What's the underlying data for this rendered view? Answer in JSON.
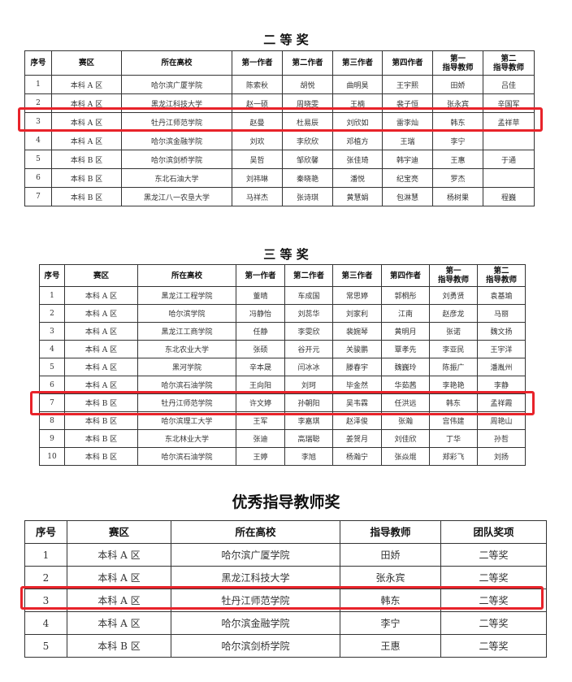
{
  "second_prize": {
    "title": "二 等 奖",
    "headers": [
      "序号",
      "赛区",
      "所在高校",
      "第一作者",
      "第二作者",
      "第三作者",
      "第四作者",
      "第一\n指导教师",
      "第二\n指导教师"
    ],
    "rows": [
      [
        "1",
        "本科 A 区",
        "哈尔滨广厦学院",
        "陈索秋",
        "胡悦",
        "曲明昊",
        "王宇熙",
        "田娇",
        "吕佳"
      ],
      [
        "2",
        "本科 A 区",
        "黑龙江科技大学",
        "赵一硕",
        "周晓雯",
        "王楠",
        "裴子恒",
        "张永宾",
        "辛国军"
      ],
      [
        "3",
        "本科 A 区",
        "牡丹江师范学院",
        "赵曼",
        "杜易辰",
        "刘欣如",
        "雷李灿",
        "韩东",
        "孟祥苹"
      ],
      [
        "4",
        "本科 A 区",
        "哈尔滨金融学院",
        "刘欢",
        "李欣欣",
        "邓植方",
        "王瑞",
        "李宁",
        ""
      ],
      [
        "5",
        "本科 B 区",
        "哈尔滨剑桥学院",
        "吴哲",
        "邹欣馨",
        "张佳琦",
        "韩宇迪",
        "王惠",
        "于通"
      ],
      [
        "6",
        "本科 B 区",
        "东北石油大学",
        "刘祎琳",
        "秦晓艳",
        "潘悦",
        "纪宝亮",
        "罗杰",
        ""
      ],
      [
        "7",
        "本科 B 区",
        "黑龙江八一农垦大学",
        "马祥杰",
        "张诗琪",
        "黄慧娟",
        "包淋慧",
        "杨树果",
        "程巍"
      ]
    ],
    "highlighted_row": 3
  },
  "third_prize": {
    "title": "三 等 奖",
    "headers": [
      "序号",
      "赛区",
      "所在高校",
      "第一作者",
      "第二作者",
      "第三作者",
      "第四作者",
      "第一\n指导教师",
      "第二\n指导教师"
    ],
    "rows": [
      [
        "1",
        "本科 A 区",
        "黑龙江工程学院",
        "董晴",
        "车成国",
        "常思婷",
        "郭桐彤",
        "刘勇贤",
        "袁基瑜"
      ],
      [
        "2",
        "本科 A 区",
        "哈尔滨学院",
        "冯静怡",
        "刘蕊华",
        "刘家利",
        "江南",
        "赵彦龙",
        "马丽"
      ],
      [
        "3",
        "本科 A 区",
        "黑龙江工商学院",
        "任静",
        "李雯欣",
        "裴婉琴",
        "黄明月",
        "张诺",
        "魏文扬"
      ],
      [
        "4",
        "本科 A 区",
        "东北农业大学",
        "张硕",
        "谷开元",
        "关骏鹏",
        "覃孝先",
        "李亚民",
        "王宇洋"
      ],
      [
        "5",
        "本科 A 区",
        "黑河学院",
        "辛本晟",
        "闫冰冰",
        "滕春宇",
        "魏巍玲",
        "陈振广",
        "潘胤州"
      ],
      [
        "6",
        "本科 A 区",
        "哈尔滨石油学院",
        "王向阳",
        "刘珂",
        "毕金然",
        "华茹茜",
        "李艳艳",
        "李静"
      ],
      [
        "7",
        "本科 B 区",
        "牡丹江师范学院",
        "许文婷",
        "孙朝阳",
        "吴韦霖",
        "任洪远",
        "韩东",
        "孟祥霞"
      ],
      [
        "8",
        "本科 B 区",
        "哈尔滨理工大学",
        "王军",
        "李嘉琪",
        "赵泽俊",
        "张瀚",
        "宫伟建",
        "周艳山"
      ],
      [
        "9",
        "本科 B 区",
        "东北林业大学",
        "张迪",
        "高瑞聪",
        "姜贺月",
        "刘佳欣",
        "丁华",
        "孙哲"
      ],
      [
        "10",
        "本科 B 区",
        "哈尔滨石油学院",
        "王婷",
        "李旭",
        "杨瀚宁",
        "张焱焜",
        "郑彩飞",
        "刘扬"
      ]
    ],
    "highlighted_row": 7
  },
  "teacher_award": {
    "title": "优秀指导教师奖",
    "headers": [
      "序号",
      "赛区",
      "所在高校",
      "指导教师",
      "团队奖项"
    ],
    "rows": [
      [
        "1",
        "本科 A 区",
        "哈尔滨广厦学院",
        "田娇",
        "二等奖"
      ],
      [
        "2",
        "本科 A 区",
        "黑龙江科技大学",
        "张永宾",
        "二等奖"
      ],
      [
        "3",
        "本科 A 区",
        "牡丹江师范学院",
        "韩东",
        "二等奖"
      ],
      [
        "4",
        "本科 A 区",
        "哈尔滨金融学院",
        "李宁",
        "二等奖"
      ],
      [
        "5",
        "本科 B 区",
        "哈尔滨剑桥学院",
        "王惠",
        "二等奖"
      ]
    ],
    "highlighted_row": 3
  },
  "highlight_color": "#e8232a"
}
